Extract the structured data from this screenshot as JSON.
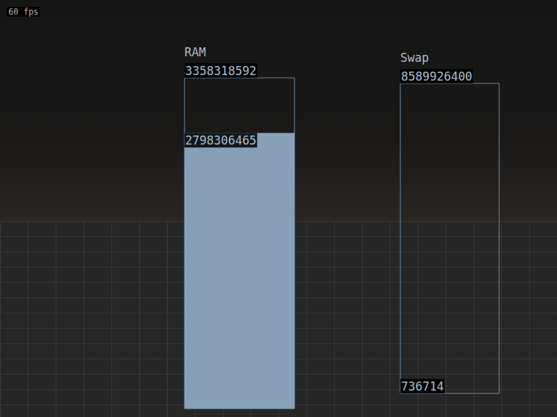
{
  "chart_data": [
    {
      "type": "bar",
      "title": "RAM",
      "annotations": [
        "60 fps"
      ],
      "categories": [
        null
      ],
      "values": [
        2798306465
      ],
      "color": "#87a0b8",
      "ylim": [
        0,
        3358318592
      ],
      "yticks": [
        3358318592
      ],
      "grid": false,
      "data_labels": true,
      "tick_labels": "y"
    },
    {
      "type": "bar",
      "title": "Swap",
      "categories": [
        null
      ],
      "values": [
        736714
      ],
      "color": "#87a0b8",
      "ylim": [
        0,
        8589926400
      ],
      "yticks": [
        8589926400
      ],
      "grid": false,
      "data_labels": true,
      "tick_labels": "y"
    }
  ]
}
